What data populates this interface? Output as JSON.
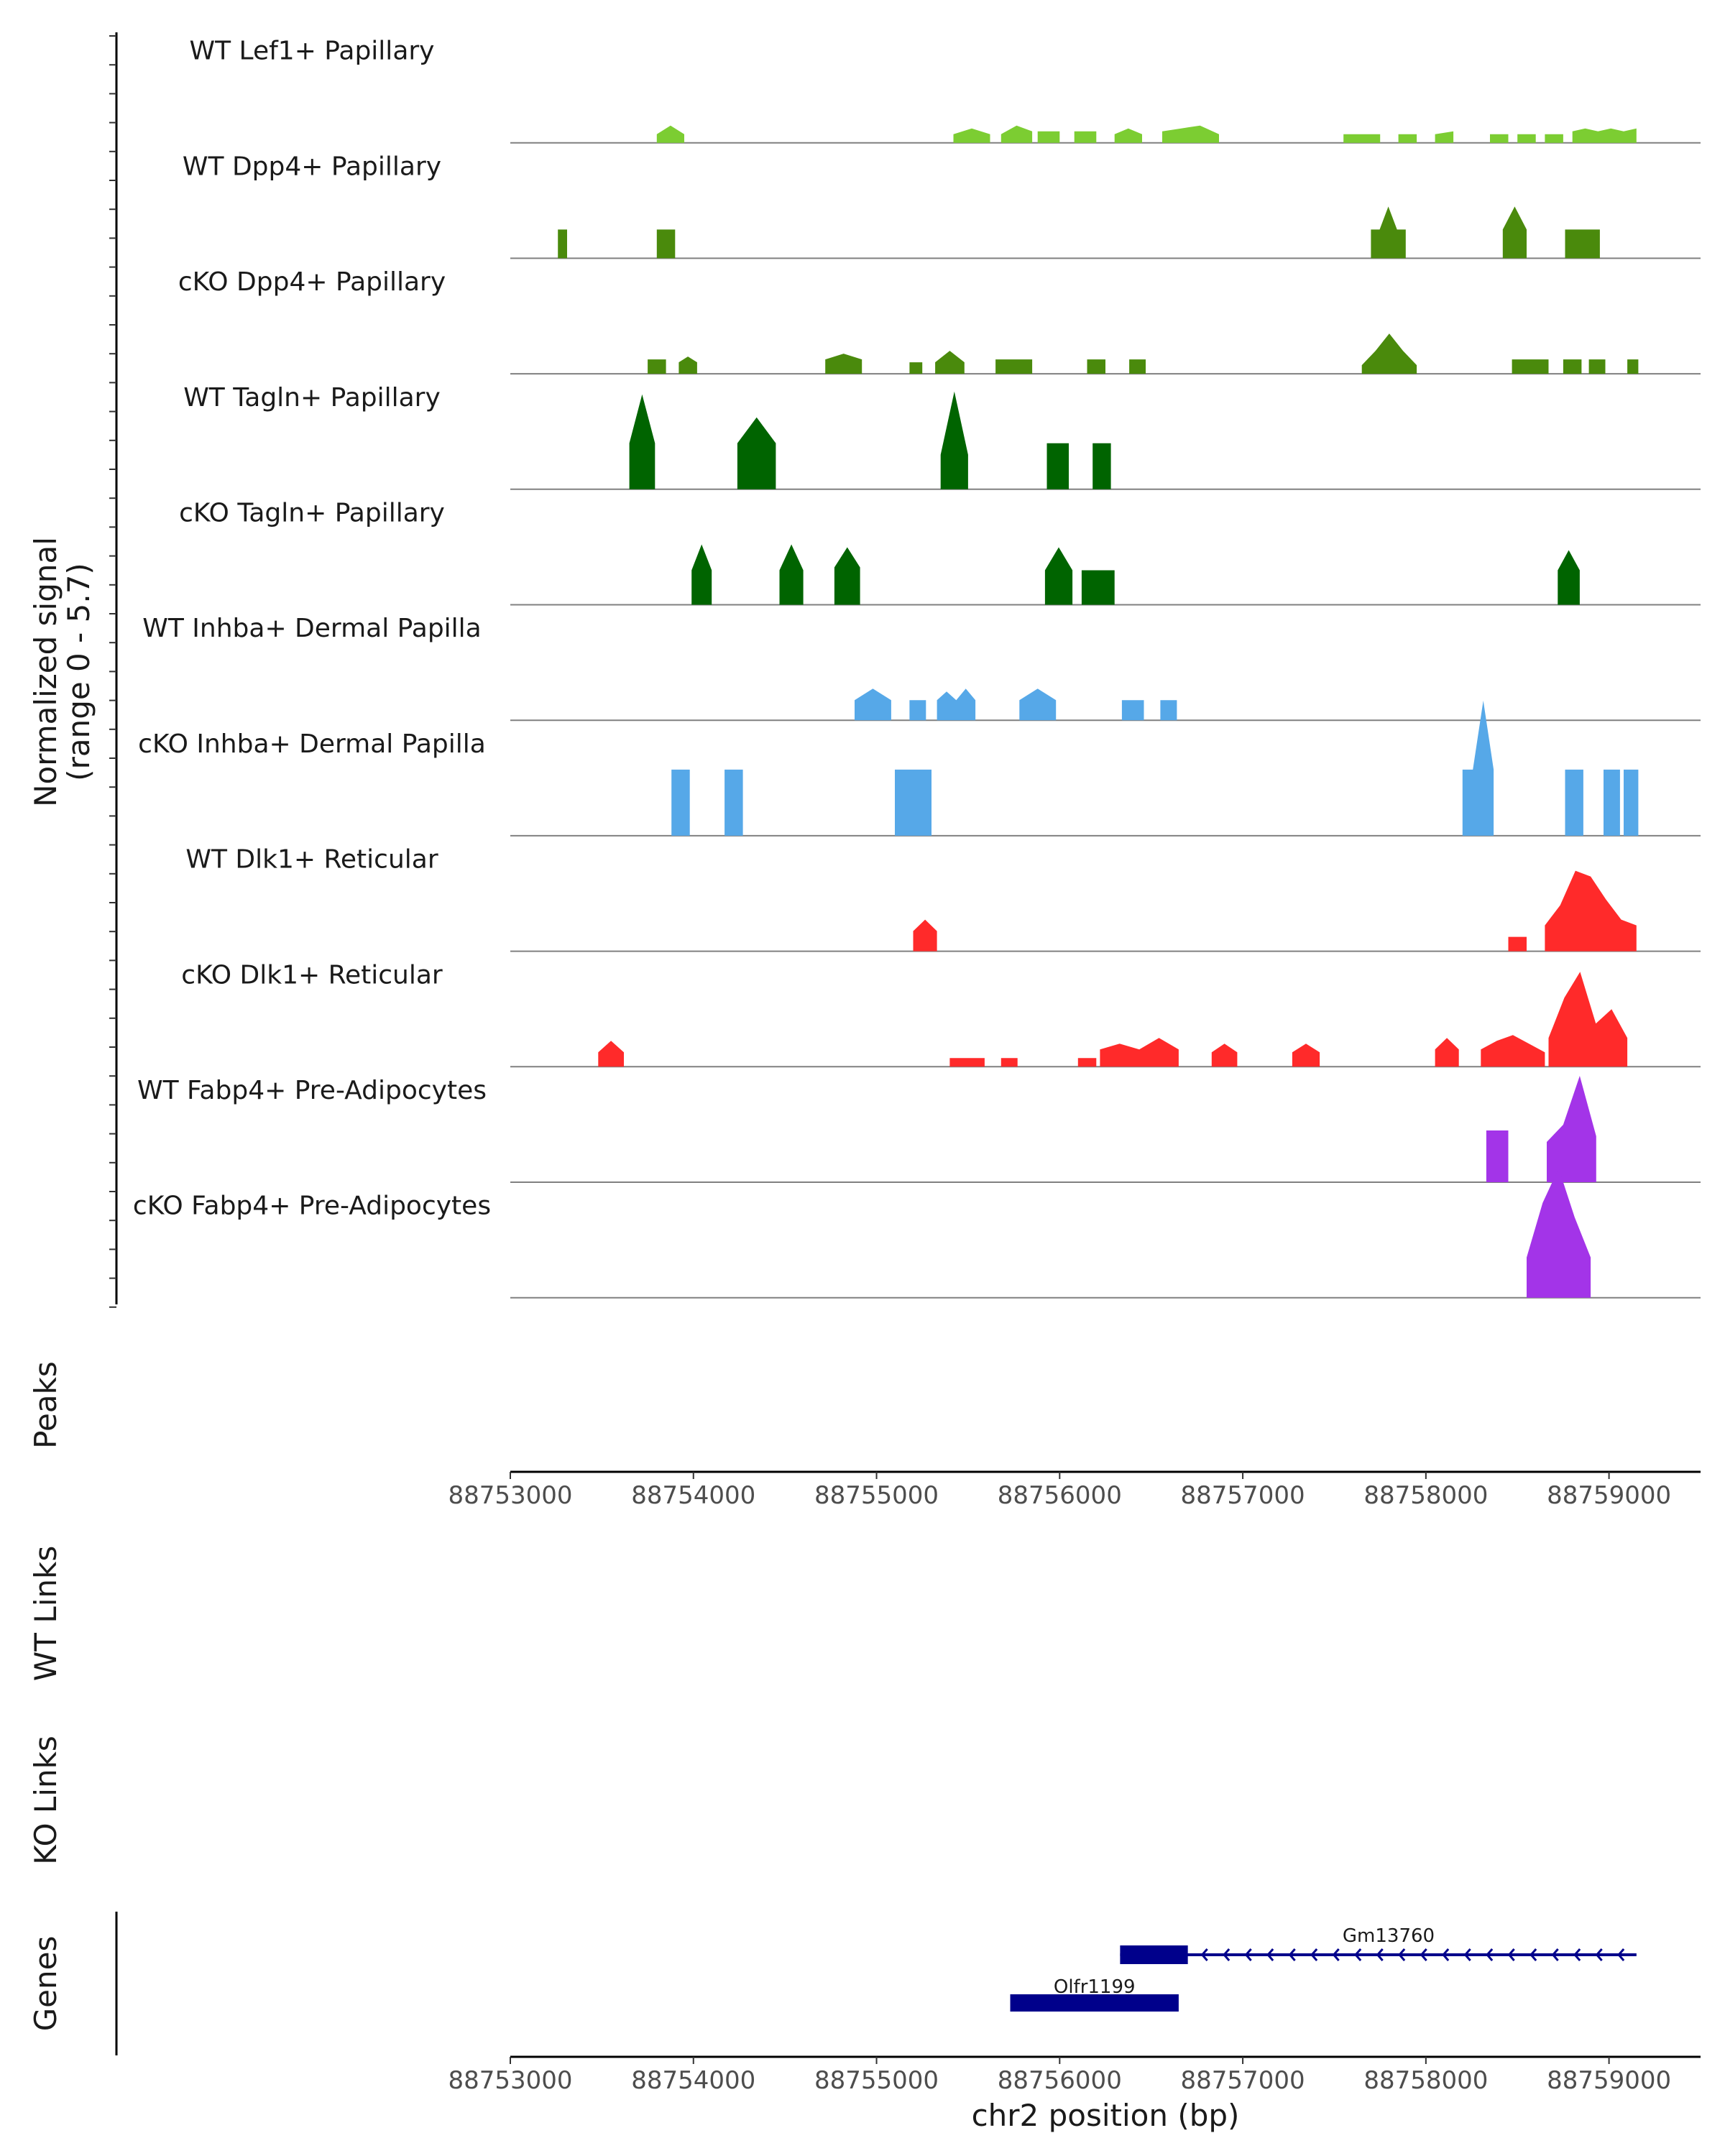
{
  "chart_data": {
    "type": "area",
    "title": "",
    "chromosome": "chr2",
    "xlabel": "chr2 position (bp)",
    "xlim": [
      88753000,
      88759500
    ],
    "x_ticks": [
      88753000,
      88754000,
      88755000,
      88756000,
      88757000,
      88758000,
      88759000
    ],
    "x_tick_labels": [
      "88753000",
      "88754000",
      "88755000",
      "88756000",
      "88757000",
      "88758000",
      "88759000"
    ],
    "ylabel_line1": "Normalized signal",
    "ylabel_line2": "(range 0 - 5.7)",
    "ylim": [
      0,
      5.7
    ],
    "series": [
      {
        "name": "WT Lef1+ Papillary",
        "color": "#7ccd32",
        "regions": [
          [
            88753800,
            88753950,
            [
              0.3,
              0.6,
              0.3
            ]
          ],
          [
            88755420,
            88755620,
            [
              0.3,
              0.5,
              0.3
            ]
          ],
          [
            88755680,
            88755850,
            [
              0.3,
              0.6,
              0.4
            ]
          ],
          [
            88755880,
            88756000,
            [
              0.4,
              0.4
            ]
          ],
          [
            88756080,
            88756200,
            [
              0.4,
              0.4
            ]
          ],
          [
            88756300,
            88756450,
            [
              0.3,
              0.5,
              0.3
            ]
          ],
          [
            88756560,
            88756870,
            [
              0.4,
              0.5,
              0.6,
              0.3
            ]
          ],
          [
            88757550,
            88757750,
            [
              0.3,
              0.3
            ]
          ],
          [
            88757850,
            88757950,
            [
              0.3,
              0.3
            ]
          ],
          [
            88758050,
            88758150,
            [
              0.3,
              0.4
            ]
          ],
          [
            88758350,
            88758450,
            [
              0.3,
              0.3
            ]
          ],
          [
            88758500,
            88758600,
            [
              0.3,
              0.3
            ]
          ],
          [
            88758650,
            88758750,
            [
              0.3,
              0.3
            ]
          ],
          [
            88758800,
            88759150,
            [
              0.4,
              0.5,
              0.4,
              0.5,
              0.4,
              0.5
            ]
          ]
        ]
      },
      {
        "name": "WT Dpp4+ Papillary",
        "color": "#4a8a0c",
        "regions": [
          [
            88753260,
            88753310,
            [
              1.0,
              1.0
            ]
          ],
          [
            88753800,
            88753900,
            [
              1.0,
              1.0
            ]
          ],
          [
            88757700,
            88757890,
            [
              1.0,
              1.0,
              1.8,
              1.0,
              1.0
            ]
          ],
          [
            88758420,
            88758550,
            [
              1.0,
              1.8,
              1.0
            ]
          ],
          [
            88758760,
            88758950,
            [
              1.0,
              1.0
            ]
          ]
        ]
      },
      {
        "name": "cKO Dpp4+ Papillary",
        "color": "#4a8a0c",
        "regions": [
          [
            88753750,
            88753850,
            [
              0.5,
              0.5
            ]
          ],
          [
            88753920,
            88754020,
            [
              0.4,
              0.6,
              0.4
            ]
          ],
          [
            88754720,
            88754920,
            [
              0.5,
              0.7,
              0.5
            ]
          ],
          [
            88755180,
            88755250,
            [
              0.4,
              0.4
            ]
          ],
          [
            88755320,
            88755480,
            [
              0.4,
              0.8,
              0.4
            ]
          ],
          [
            88755650,
            88755850,
            [
              0.5,
              0.5
            ]
          ],
          [
            88756150,
            88756250,
            [
              0.5,
              0.5
            ]
          ],
          [
            88756380,
            88756470,
            [
              0.5,
              0.5
            ]
          ],
          [
            88757650,
            88757950,
            [
              0.3,
              0.8,
              1.4,
              0.8,
              0.3
            ]
          ],
          [
            88758470,
            88758670,
            [
              0.5,
              0.5
            ]
          ],
          [
            88758750,
            88758850,
            [
              0.5,
              0.5
            ]
          ],
          [
            88758890,
            88758980,
            [
              0.5,
              0.5
            ]
          ],
          [
            88759100,
            88759160,
            [
              0.5,
              0.5
            ]
          ]
        ]
      },
      {
        "name": "WT Tagln+ Papillary",
        "color": "#006400",
        "regions": [
          [
            88753650,
            88753790,
            [
              1.6,
              3.3,
              1.6
            ]
          ],
          [
            88754240,
            88754450,
            [
              1.6,
              2.5,
              1.6
            ]
          ],
          [
            88755350,
            88755500,
            [
              1.2,
              3.4,
              1.2
            ]
          ],
          [
            88755930,
            88756050,
            [
              1.6,
              1.6
            ]
          ],
          [
            88756180,
            88756280,
            [
              1.6,
              1.6
            ]
          ]
        ]
      },
      {
        "name": "cKO Tagln+ Papillary",
        "color": "#006400",
        "regions": [
          [
            88753990,
            88754100,
            [
              1.2,
              2.1,
              1.2
            ]
          ],
          [
            88754470,
            88754600,
            [
              1.2,
              2.1,
              1.2
            ]
          ],
          [
            88754770,
            88754910,
            [
              1.3,
              2.0,
              1.3
            ]
          ],
          [
            88755920,
            88756070,
            [
              1.2,
              2.0,
              1.2
            ]
          ],
          [
            88756120,
            88756300,
            [
              1.2,
              1.2
            ]
          ],
          [
            88758720,
            88758840,
            [
              1.2,
              1.9,
              1.2
            ]
          ]
        ]
      },
      {
        "name": "WT Inhba+ Dermal Papilla",
        "color": "#56a8e8",
        "regions": [
          [
            88754880,
            88755080,
            [
              0.7,
              1.1,
              0.7
            ]
          ],
          [
            88755180,
            88755270,
            [
              0.7,
              0.7
            ]
          ],
          [
            88755330,
            88755540,
            [
              0.7,
              1.0,
              0.7,
              1.1,
              0.7
            ]
          ],
          [
            88755780,
            88755980,
            [
              0.7,
              1.1,
              0.7
            ]
          ],
          [
            88756340,
            88756460,
            [
              0.7,
              0.7
            ]
          ],
          [
            88756550,
            88756640,
            [
              0.7,
              0.7
            ]
          ]
        ]
      },
      {
        "name": "cKO Inhba+ Dermal Papilla",
        "color": "#56a8e8",
        "regions": [
          [
            88753880,
            88753980,
            [
              2.3,
              2.3
            ]
          ],
          [
            88754170,
            88754270,
            [
              2.3,
              2.3
            ]
          ],
          [
            88755100,
            88755300,
            [
              2.3,
              2.3
            ]
          ],
          [
            88758200,
            88758370,
            [
              2.3,
              2.3,
              4.7,
              2.3
            ]
          ],
          [
            88758760,
            88758860,
            [
              2.3,
              2.3
            ]
          ],
          [
            88758970,
            88759060,
            [
              2.3,
              2.3
            ]
          ],
          [
            88759080,
            88759160,
            [
              2.3,
              2.3
            ]
          ]
        ]
      },
      {
        "name": "WT Dlk1+ Reticular",
        "color": "#ff2a2a",
        "regions": [
          [
            88755200,
            88755330,
            [
              0.7,
              1.1,
              0.7
            ]
          ],
          [
            88758450,
            88758550,
            [
              0.5,
              0.5
            ]
          ],
          [
            88758650,
            88759150,
            [
              0.9,
              1.6,
              2.8,
              2.6,
              1.8,
              1.1,
              0.9
            ]
          ]
        ]
      },
      {
        "name": "cKO Dlk1+ Reticular",
        "color": "#ff2a2a",
        "regions": [
          [
            88753480,
            88753620,
            [
              0.5,
              0.9,
              0.5
            ]
          ],
          [
            88755400,
            88755590,
            [
              0.3,
              0.3
            ]
          ],
          [
            88755680,
            88755770,
            [
              0.3,
              0.3
            ]
          ],
          [
            88756100,
            88756200,
            [
              0.3,
              0.3
            ]
          ],
          [
            88756220,
            88756650,
            [
              0.6,
              0.8,
              0.6,
              1.0,
              0.6
            ]
          ],
          [
            88756830,
            88756970,
            [
              0.5,
              0.8,
              0.5
            ]
          ],
          [
            88757270,
            88757420,
            [
              0.5,
              0.8,
              0.5
            ]
          ],
          [
            88758050,
            88758180,
            [
              0.6,
              1.0,
              0.6
            ]
          ],
          [
            88758300,
            88758650,
            [
              0.6,
              0.9,
              1.1,
              0.8,
              0.5
            ]
          ],
          [
            88758670,
            88759100,
            [
              1.0,
              2.4,
              3.3,
              1.5,
              2.0,
              1.0
            ]
          ]
        ]
      },
      {
        "name": "WT Fabp4+ Pre-Adipocytes",
        "color": "#a334e8",
        "regions": [
          [
            88758330,
            88758450,
            [
              1.8,
              1.8
            ]
          ],
          [
            88758660,
            88758930,
            [
              1.4,
              2.0,
              3.7,
              1.6
            ]
          ]
        ]
      },
      {
        "name": "cKO Fabp4+ Pre-Adipocytes",
        "color": "#a334e8",
        "regions": [
          [
            88758550,
            88758900,
            [
              1.4,
              3.3,
              4.5,
              2.8,
              1.4
            ]
          ]
        ]
      }
    ],
    "peaks_label": "Peaks",
    "wt_links_label": "WT Links",
    "ko_links_label": "KO Links",
    "genes_label": "Genes",
    "genes": [
      {
        "name": "Gm13760",
        "start": 88756330,
        "end": 88759150,
        "strand": "-",
        "exon": [
          88756330,
          88756700
        ],
        "color": "#00008b"
      },
      {
        "name": "Olfr1199",
        "start": 88755730,
        "end": 88756650,
        "strand": "+",
        "exon": [
          88755730,
          88756650
        ],
        "color": "#00008b"
      }
    ]
  }
}
